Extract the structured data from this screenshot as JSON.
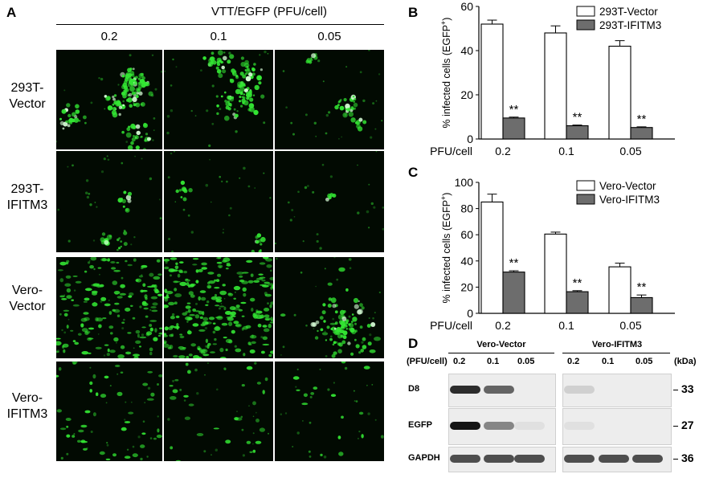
{
  "panelA": {
    "letter": "A",
    "title": "VTT/EGFP (PFU/cell)",
    "columns": [
      "0.2",
      "0.1",
      "0.05"
    ],
    "rows": [
      {
        "line1": "293T-",
        "line2": "Vector"
      },
      {
        "line1": "293T-",
        "line2": "IFITM3"
      },
      {
        "line1": "Vero-",
        "line2": "Vector"
      },
      {
        "line1": "Vero-",
        "line2": "IFITM3"
      }
    ],
    "fluorescence_color": "#33e633"
  },
  "panelB": {
    "letter": "B"
  },
  "panelC": {
    "letter": "C"
  },
  "chart_data": [
    {
      "type": "bar",
      "panel": "B",
      "categories": [
        "0.2",
        "0.1",
        "0.05"
      ],
      "category_prefix": "PFU/cell",
      "ylabel_main": "% infected cells (EGFP",
      "ylabel_sup": "+",
      "ylabel_end": ")",
      "ylim": [
        0,
        60
      ],
      "yticks": [
        0,
        20,
        40,
        60
      ],
      "series": [
        {
          "name": "293T-Vector",
          "values": [
            52,
            48,
            42
          ],
          "errors": [
            1.8,
            3.2,
            2.5
          ],
          "color": "#ffffff"
        },
        {
          "name": "293T-IFITM3",
          "values": [
            9.5,
            6,
            5.2
          ],
          "errors": [
            0.4,
            0.3,
            0.3
          ],
          "color": "#6d6d6d"
        }
      ],
      "significance": [
        "**",
        "**",
        "**"
      ]
    },
    {
      "type": "bar",
      "panel": "C",
      "categories": [
        "0.2",
        "0.1",
        "0.05"
      ],
      "category_prefix": "PFU/cell",
      "ylabel_main": "% infected cells (EGFP",
      "ylabel_sup": "+",
      "ylabel_end": ")",
      "ylim": [
        0,
        100
      ],
      "yticks": [
        0,
        20,
        40,
        60,
        80,
        100
      ],
      "series": [
        {
          "name": "Vero-Vector",
          "values": [
            85,
            60.5,
            35.5
          ],
          "errors": [
            6,
            1.5,
            2.8
          ],
          "color": "#ffffff"
        },
        {
          "name": "Vero-IFITM3",
          "values": [
            31.5,
            16.5,
            12
          ],
          "errors": [
            1,
            0.8,
            2
          ],
          "color": "#6d6d6d"
        }
      ],
      "significance": [
        "**",
        "**",
        "**"
      ]
    }
  ],
  "panelD": {
    "letter": "D",
    "groups": [
      "Vero-Vector",
      "Vero-IFITM3"
    ],
    "dose_label": "(PFU/cell)",
    "doses": [
      "0.2",
      "0.1",
      "0.05",
      "0.2",
      "0.1",
      "0.05"
    ],
    "kda_label": "(kDa)",
    "blots": [
      {
        "name": "D8",
        "kda": "33",
        "intensity": [
          0.85,
          0.6,
          0.0,
          0.12,
          0.0,
          0.0
        ]
      },
      {
        "name": "EGFP",
        "kda": "27",
        "intensity": [
          0.95,
          0.45,
          0.05,
          0.05,
          0.0,
          0.0
        ]
      },
      {
        "name": "GAPDH",
        "kda": "36",
        "intensity": [
          0.7,
          0.7,
          0.7,
          0.7,
          0.7,
          0.7
        ]
      }
    ]
  }
}
